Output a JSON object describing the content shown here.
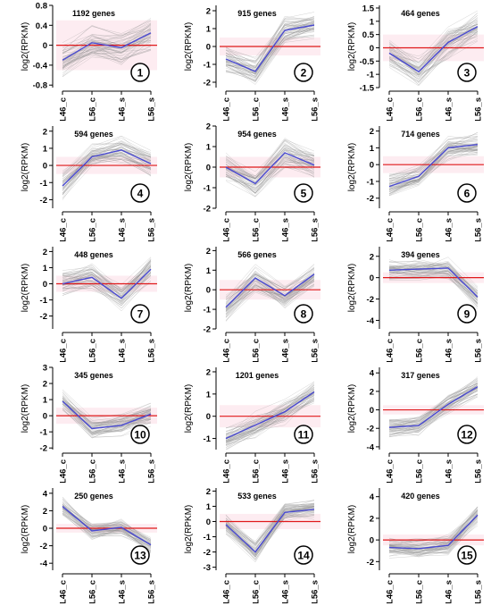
{
  "colors": {
    "gray": "#8c8c8c",
    "mean": "#4a4ad0",
    "zero": "#e0191b",
    "halo": "#f8c8d8"
  },
  "chart_data": [
    {
      "type": "line",
      "panel": "1",
      "genes": "1192 genes",
      "ylabel": "log2(RPKM)",
      "categories": [
        "L46_c",
        "L56_c",
        "L46_s",
        "L56_s"
      ],
      "ylim": [
        -0.85,
        0.8
      ],
      "yticks": [
        "0.8",
        "0.4",
        "0",
        "-0.4",
        "-0.8"
      ],
      "ytick_values": [
        0.8,
        0.4,
        0,
        -0.4,
        -0.8
      ],
      "series": [
        {
          "values": [
            -0.3,
            0.05,
            -0.05,
            0.25
          ]
        }
      ],
      "spread": 0.3
    },
    {
      "type": "line",
      "panel": "2",
      "genes": "915 genes",
      "ylabel": "log2(RPKM)",
      "categories": [
        "L46_c",
        "L56_c",
        "L46_s",
        "L56_s"
      ],
      "ylim": [
        -2.3,
        2.3
      ],
      "yticks": [
        "2",
        "1",
        "0",
        "-1",
        "-2"
      ],
      "ytick_values": [
        2,
        1,
        0,
        -1,
        -2
      ],
      "series": [
        {
          "values": [
            -0.7,
            -1.4,
            0.9,
            1.2
          ]
        }
      ],
      "spread": 0.7
    },
    {
      "type": "line",
      "panel": "3",
      "genes": "464 genes",
      "ylabel": "log2(RPKM)",
      "categories": [
        "L46_c",
        "L56_c",
        "L46_s",
        "L56_s"
      ],
      "ylim": [
        -1.5,
        1.6
      ],
      "yticks": [
        "1.5",
        "1",
        "0.5",
        "0",
        "-0.5",
        "-1",
        "-1.5"
      ],
      "ytick_values": [
        1.5,
        1,
        0.5,
        0,
        -0.5,
        -1,
        -1.5
      ],
      "series": [
        {
          "values": [
            -0.2,
            -0.9,
            0.2,
            0.8
          ]
        }
      ],
      "spread": 0.5
    },
    {
      "type": "line",
      "panel": "4",
      "genes": "594 genes",
      "ylabel": "log2(RPKM)",
      "categories": [
        "L46_c",
        "L56_c",
        "L46_s",
        "L56_s"
      ],
      "ylim": [
        -2.5,
        2.3
      ],
      "yticks": [
        "2",
        "1",
        "0",
        "-1",
        "-2"
      ],
      "ytick_values": [
        2,
        1,
        0,
        -1,
        -2
      ],
      "series": [
        {
          "values": [
            -1.2,
            0.5,
            0.9,
            0.1
          ]
        }
      ],
      "spread": 0.7
    },
    {
      "type": "line",
      "panel": "5",
      "genes": "954 genes",
      "ylabel": "log2(RPKM)",
      "categories": [
        "L46_c",
        "L56_c",
        "L46_s",
        "L56_s"
      ],
      "ylim": [
        -2,
        2
      ],
      "yticks": [
        "2",
        "1",
        "0",
        "-1",
        "-2"
      ],
      "ytick_values": [
        2,
        1,
        0,
        -1,
        -2
      ],
      "series": [
        {
          "values": [
            0,
            -0.8,
            0.7,
            0.1
          ]
        }
      ],
      "spread": 0.6
    },
    {
      "type": "line",
      "panel": "6",
      "genes": "714 genes",
      "ylabel": "log2(RPKM)",
      "categories": [
        "L46_c",
        "L56_c",
        "L46_s",
        "L56_s"
      ],
      "ylim": [
        -2.6,
        2.3
      ],
      "yticks": [
        "2",
        "1",
        "0",
        "-1",
        "-2"
      ],
      "ytick_values": [
        2,
        1,
        0,
        -1,
        -2
      ],
      "series": [
        {
          "values": [
            -1.3,
            -0.7,
            1.0,
            1.2
          ]
        }
      ],
      "spread": 0.6
    },
    {
      "type": "line",
      "panel": "7",
      "genes": "448 genes",
      "ylabel": "log2(RPKM)",
      "categories": [
        "L46_c",
        "L56_c",
        "L46_s",
        "L56_s"
      ],
      "ylim": [
        -2.8,
        2.3
      ],
      "yticks": [
        "2",
        "1",
        "0",
        "-1",
        "-2"
      ],
      "ytick_values": [
        2,
        1,
        0,
        -1,
        -2
      ],
      "series": [
        {
          "values": [
            0,
            0.4,
            -0.9,
            0.9
          ]
        }
      ],
      "spread": 0.7
    },
    {
      "type": "line",
      "panel": "8",
      "genes": "566 genes",
      "ylabel": "log2(RPKM)",
      "categories": [
        "L46_c",
        "L56_c",
        "L46_s",
        "L56_s"
      ],
      "ylim": [
        -2,
        2.2
      ],
      "yticks": [
        "2",
        "1",
        "0",
        "-1",
        "-2"
      ],
      "ytick_values": [
        2,
        1,
        0,
        -1,
        -2
      ],
      "series": [
        {
          "values": [
            -0.9,
            0.6,
            -0.3,
            0.8
          ]
        }
      ],
      "spread": 0.6
    },
    {
      "type": "line",
      "panel": "9",
      "genes": "394 genes",
      "ylabel": "log2(RPKM)",
      "categories": [
        "L46_c",
        "L56_c",
        "L46_s",
        "L56_s"
      ],
      "ylim": [
        -4.8,
        2.9
      ],
      "yticks": [
        "2",
        "0",
        "-2",
        "-4"
      ],
      "ytick_values": [
        2,
        0,
        -2,
        -4
      ],
      "series": [
        {
          "values": [
            0.7,
            0.8,
            0.9,
            -1.8
          ]
        }
      ],
      "spread": 0.9
    },
    {
      "type": "line",
      "panel": "10",
      "genes": "345 genes",
      "ylabel": "log2(RPKM)",
      "categories": [
        "L46_c",
        "L56_c",
        "L46_s",
        "L56_s"
      ],
      "ylim": [
        -2.1,
        3
      ],
      "yticks": [
        "3",
        "2",
        "1",
        "0",
        "-1",
        "-2"
      ],
      "ytick_values": [
        3,
        2,
        1,
        0,
        -1,
        -2
      ],
      "series": [
        {
          "values": [
            0.9,
            -0.8,
            -0.6,
            0.1
          ]
        }
      ],
      "spread": 0.6
    },
    {
      "type": "line",
      "panel": "11",
      "genes": "1201 genes",
      "ylabel": "log2(RPKM)",
      "categories": [
        "L46_c",
        "L56_c",
        "L46_s",
        "L56_s"
      ],
      "ylim": [
        -1.5,
        2.2
      ],
      "yticks": [
        "2",
        "1",
        "0",
        "-1"
      ],
      "ytick_values": [
        2,
        1,
        0,
        -1
      ],
      "series": [
        {
          "values": [
            -1.0,
            -0.4,
            0.2,
            1.1
          ]
        }
      ],
      "spread": 0.5
    },
    {
      "type": "line",
      "panel": "12",
      "genes": "317 genes",
      "ylabel": "log2(RPKM)",
      "categories": [
        "L46_c",
        "L56_c",
        "L46_s",
        "L56_s"
      ],
      "ylim": [
        -4.3,
        4.6
      ],
      "yticks": [
        "4",
        "2",
        "0",
        "-2",
        "-4"
      ],
      "ytick_values": [
        4,
        2,
        0,
        -2,
        -4
      ],
      "series": [
        {
          "values": [
            -1.9,
            -1.7,
            0.6,
            2.5
          ]
        }
      ],
      "spread": 0.9
    },
    {
      "type": "line",
      "panel": "13",
      "genes": "250 genes",
      "ylabel": "log2(RPKM)",
      "categories": [
        "L46_c",
        "L56_c",
        "L46_s",
        "L56_s"
      ],
      "ylim": [
        -4.8,
        4.6
      ],
      "yticks": [
        "4",
        "2",
        "0",
        "-2",
        "-4"
      ],
      "ytick_values": [
        4,
        2,
        0,
        -2,
        -4
      ],
      "series": [
        {
          "values": [
            2.5,
            -0.3,
            0.1,
            -1.9
          ]
        }
      ],
      "spread": 0.9
    },
    {
      "type": "line",
      "panel": "14",
      "genes": "533 genes",
      "ylabel": "log2(RPKM)",
      "categories": [
        "L46_c",
        "L56_c",
        "L46_s",
        "L56_s"
      ],
      "ylim": [
        -3.2,
        2.2
      ],
      "yticks": [
        "2",
        "1",
        "0",
        "-1",
        "-2",
        "-3"
      ],
      "ytick_values": [
        2,
        1,
        0,
        -1,
        -2,
        -3
      ],
      "series": [
        {
          "values": [
            -0.2,
            -2.0,
            0.6,
            0.8
          ]
        }
      ],
      "spread": 0.6
    },
    {
      "type": "line",
      "panel": "15",
      "genes": "420 genes",
      "ylabel": "log2(RPKM)",
      "categories": [
        "L46_c",
        "L56_c",
        "L46_s",
        "L56_s"
      ],
      "ylim": [
        -2.8,
        4.8
      ],
      "yticks": [
        "4",
        "2",
        "0",
        "-2"
      ],
      "ytick_values": [
        4,
        2,
        0,
        -2
      ],
      "series": [
        {
          "values": [
            -0.7,
            -0.8,
            -0.5,
            2.3
          ]
        }
      ],
      "spread": 0.8
    }
  ]
}
